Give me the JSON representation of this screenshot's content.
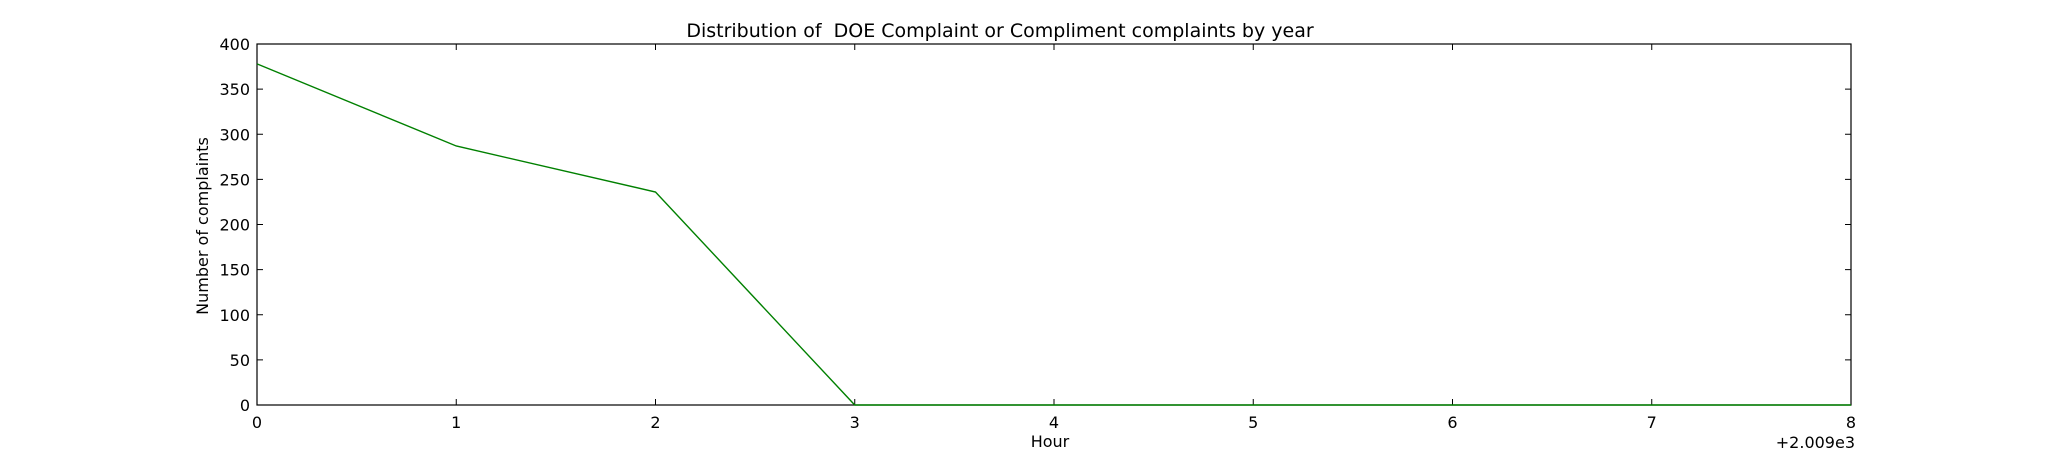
{
  "chart_data": {
    "type": "line",
    "title": "Distribution of  DOE Complaint or Compliment complaints by year",
    "xlabel": "Hour",
    "ylabel": "Number of complaints",
    "x_offset_text": "+2.009e3",
    "x": [
      0,
      1,
      2,
      3,
      4,
      5,
      6,
      7,
      8
    ],
    "series": [
      {
        "values": [
          378,
          287,
          236,
          0,
          0,
          0,
          0,
          0,
          0
        ],
        "color": "#008000"
      }
    ],
    "xlim": [
      0,
      8
    ],
    "ylim": [
      0,
      400
    ],
    "xticks": [
      0,
      1,
      2,
      3,
      4,
      5,
      6,
      7,
      8
    ],
    "yticks": [
      0,
      50,
      100,
      150,
      200,
      250,
      300,
      350,
      400
    ],
    "grid": false,
    "legend": "none"
  }
}
